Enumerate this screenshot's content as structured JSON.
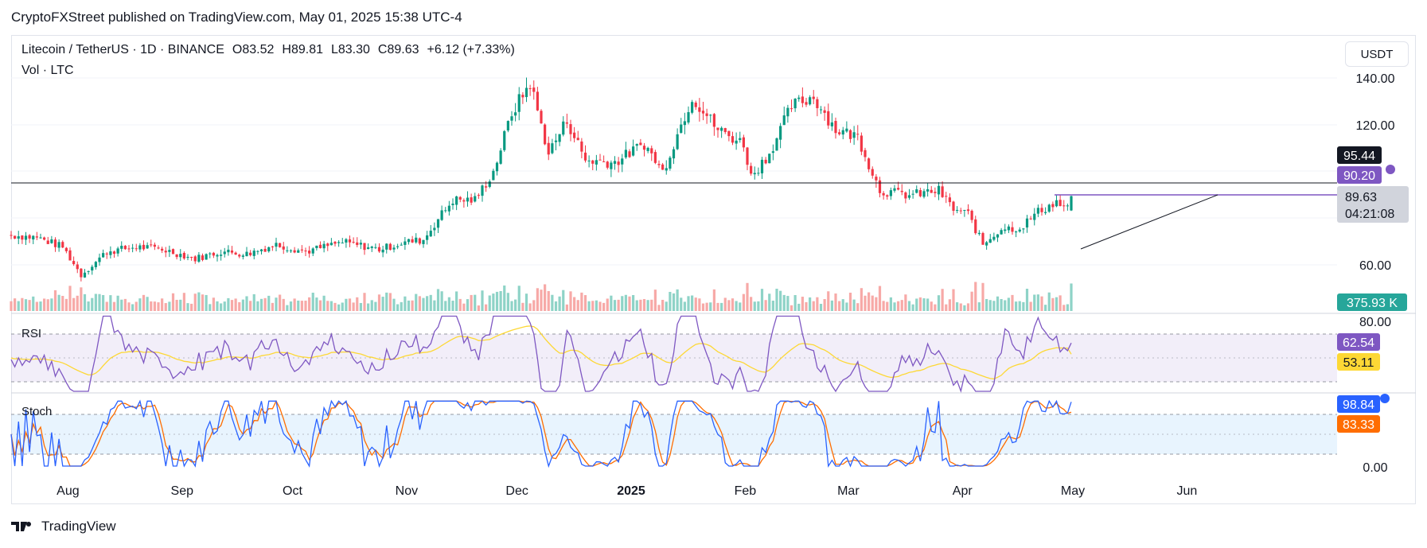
{
  "header": {
    "publisher": "CryptoFXStreet published on TradingView.com, May 01, 2025 15:38 UTC-4"
  },
  "legend": {
    "symbol": "Litecoin / TetherUS · 1D · BINANCE",
    "open": "O83.52",
    "high": "H89.81",
    "low": "L83.30",
    "close": "C89.63",
    "change": "+6.12 (+7.33%)",
    "volume_label": "Vol · LTC"
  },
  "currency": "USDT",
  "price_axis": {
    "ticks": [
      "140.00",
      "120.00",
      "60.00"
    ]
  },
  "badges": {
    "level_9544": "95.44",
    "level_9020": "90.20",
    "last": "89.63",
    "countdown": "04:21:08",
    "volume": "375.93 K",
    "rsi": "62.54",
    "rsi_ma": "53.11",
    "stoch_k": "98.84",
    "stoch_d": "83.33"
  },
  "rsi_axis": {
    "top": "80.00"
  },
  "stoch_axis": {
    "bottom": "0.00"
  },
  "panes": {
    "rsi_label": "RSI",
    "stoch_label": "Stoch"
  },
  "time_axis": [
    "Aug",
    "Sep",
    "Oct",
    "Nov",
    "Dec",
    "2025",
    "Feb",
    "Mar",
    "Apr",
    "May",
    "Jun"
  ],
  "brand": "TradingView",
  "colors": {
    "up": "#089981",
    "down": "#f23645",
    "rsi": "#7e57c2",
    "rsi_ma": "#fdd835",
    "stoch_k": "#2962ff",
    "stoch_d": "#ff6d00",
    "vol_up": "#8ed3c7",
    "vol_down": "#f7a9a7"
  },
  "chart_data": {
    "type": "candlestick",
    "symbol": "LTCUSDT",
    "interval": "1D",
    "ylim": [
      48,
      150
    ],
    "close_path": [
      [
        "2024-07-17",
        73
      ],
      [
        "2024-07-24",
        72
      ],
      [
        "2024-07-31",
        68
      ],
      [
        "2024-08-05",
        56
      ],
      [
        "2024-08-12",
        66
      ],
      [
        "2024-08-20",
        68
      ],
      [
        "2024-08-27",
        67
      ],
      [
        "2024-09-05",
        63
      ],
      [
        "2024-09-12",
        66
      ],
      [
        "2024-09-19",
        65
      ],
      [
        "2024-09-27",
        69
      ],
      [
        "2024-10-05",
        66
      ],
      [
        "2024-10-15",
        70
      ],
      [
        "2024-10-25",
        67
      ],
      [
        "2024-11-01",
        70
      ],
      [
        "2024-11-06",
        71
      ],
      [
        "2024-11-10",
        80
      ],
      [
        "2024-11-14",
        88
      ],
      [
        "2024-11-20",
        88
      ],
      [
        "2024-11-25",
        100
      ],
      [
        "2024-11-30",
        125
      ],
      [
        "2024-12-05",
        138
      ],
      [
        "2024-12-10",
        108
      ],
      [
        "2024-12-15",
        122
      ],
      [
        "2024-12-20",
        105
      ],
      [
        "2024-12-28",
        104
      ],
      [
        "2025-01-05",
        112
      ],
      [
        "2025-01-10",
        100
      ],
      [
        "2025-01-18",
        132
      ],
      [
        "2025-01-25",
        118
      ],
      [
        "2025-02-01",
        112
      ],
      [
        "2025-02-03",
        98
      ],
      [
        "2025-02-08",
        108
      ],
      [
        "2025-02-14",
        128
      ],
      [
        "2025-02-20",
        132
      ],
      [
        "2025-02-26",
        118
      ],
      [
        "2025-03-04",
        115
      ],
      [
        "2025-03-10",
        92
      ],
      [
        "2025-03-18",
        90
      ],
      [
        "2025-03-26",
        92
      ],
      [
        "2025-03-30",
        84
      ],
      [
        "2025-04-03",
        82
      ],
      [
        "2025-04-07",
        69
      ],
      [
        "2025-04-12",
        76
      ],
      [
        "2025-04-17",
        76
      ],
      [
        "2025-04-22",
        83
      ],
      [
        "2025-04-27",
        87
      ],
      [
        "2025-04-30",
        84
      ],
      [
        "2025-05-01",
        89.63
      ]
    ],
    "last_bar": {
      "date": "2025-05-01",
      "open": 83.52,
      "high": 89.81,
      "low": 83.3,
      "close": 89.63
    },
    "horizontal_levels": [
      95.44,
      90.2
    ],
    "trendline": [
      [
        "2025-04-07",
        66
      ],
      [
        "2025-05-08",
        88.5
      ]
    ],
    "volume_last": "375.93 K",
    "rsi": {
      "last": 62.54,
      "ma": 53.11,
      "bands": [
        30,
        70
      ]
    },
    "stoch": {
      "k": 98.84,
      "d": 83.33,
      "bands": [
        20,
        80
      ]
    }
  }
}
